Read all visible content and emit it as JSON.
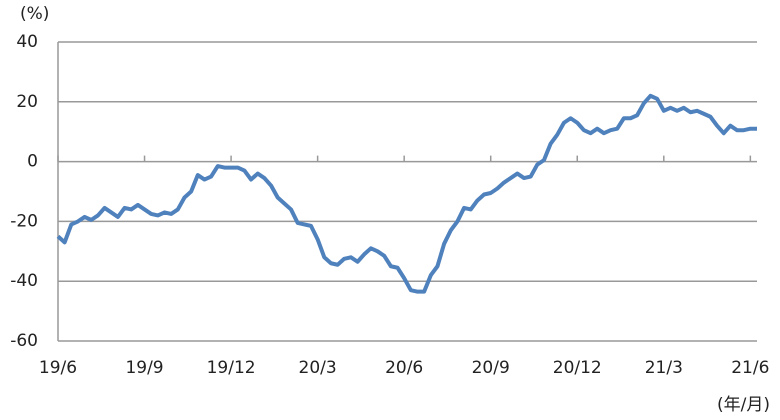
{
  "chart_data": {
    "type": "line",
    "y_label": "(%)",
    "x_label": "(年/月)",
    "categories": [
      "19/6",
      null,
      null,
      null,
      null,
      null,
      null,
      null,
      null,
      null,
      null,
      null,
      null,
      "19/9",
      null,
      null,
      null,
      null,
      null,
      null,
      null,
      null,
      null,
      null,
      null,
      null,
      "19/12",
      null,
      null,
      null,
      null,
      null,
      null,
      null,
      null,
      null,
      null,
      null,
      null,
      "20/3",
      null,
      null,
      null,
      null,
      null,
      null,
      null,
      null,
      null,
      null,
      null,
      null,
      "20/6",
      null,
      null,
      null,
      null,
      null,
      null,
      null,
      null,
      null,
      null,
      null,
      null,
      "20/9",
      null,
      null,
      null,
      null,
      null,
      null,
      null,
      null,
      null,
      null,
      null,
      null,
      "20/12",
      null,
      null,
      null,
      null,
      null,
      null,
      null,
      null,
      null,
      null,
      null,
      null,
      "21/3",
      null,
      null,
      null,
      null,
      null,
      null,
      null,
      null,
      null,
      null,
      null,
      null,
      "21/6",
      null
    ],
    "series": [
      {
        "color": "#4f81bd",
        "values": [
          -25,
          -27,
          -21,
          -20,
          -18.5,
          -19.5,
          -18,
          -15.5,
          -17,
          -18.5,
          -15.5,
          -16,
          -14.5,
          -16,
          -17.5,
          -18,
          -17,
          -17.5,
          -16,
          -12,
          -10,
          -4.5,
          -6,
          -5,
          -1.5,
          -2,
          -2,
          -2,
          -3,
          -6,
          -4,
          -5.5,
          -8,
          -12,
          -14,
          -16,
          -20.5,
          -21,
          -21.5,
          -26,
          -32,
          -34,
          -34.5,
          -32.5,
          -32,
          -33.5,
          -31,
          -29,
          -30,
          -31.5,
          -35,
          -35.5,
          -39,
          -43,
          -43.5,
          -43.5,
          -38,
          -35,
          -27.5,
          -23,
          -20,
          -15.5,
          -16,
          -13,
          -11,
          -10.5,
          -9,
          -7,
          -5.5,
          -4,
          -5.5,
          -5,
          -1,
          0.5,
          6,
          9,
          13,
          14.5,
          13,
          10.5,
          9.5,
          11,
          9.5,
          10.5,
          11,
          14.5,
          14.5,
          15.5,
          19.5,
          22,
          21,
          17,
          18,
          17,
          18,
          16.5,
          17,
          16,
          15,
          12,
          9.5,
          12,
          10.5,
          10.5,
          11,
          11
        ]
      }
    ],
    "ylim": [
      -60,
      40
    ],
    "yticks": [
      40,
      20,
      0,
      -20,
      -40,
      -60
    ],
    "grid": true
  }
}
